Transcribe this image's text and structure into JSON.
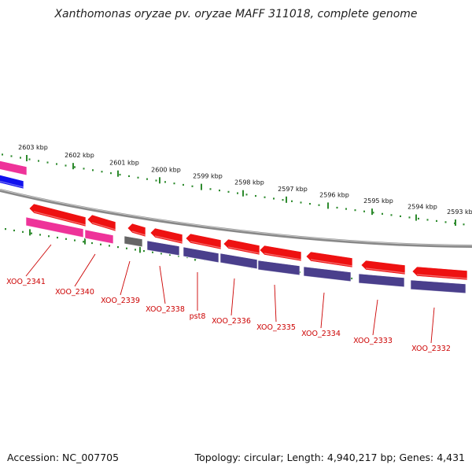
{
  "title": "Xanthomonas oryzae pv. oryzae MAFF 311018, complete genome",
  "footer": {
    "accession": "Accession: NC_007705",
    "summary": "Topology: circular; Length: 4,940,217 bp; Genes: 4,431"
  },
  "kbp_labels": [
    "2603 kbp",
    "2602 kbp",
    "2601 kbp",
    "2600 kbp",
    "2599 kbp",
    "2598 kbp",
    "2597 kbp",
    "2596 kbp",
    "2595 kbp",
    "2594 kbp",
    "2593 kbp"
  ],
  "gene_labels": [
    "XOO_2341",
    "XOO_2340",
    "XOO_2339",
    "XOO_2338",
    "pst8",
    "XOO_2336",
    "XOO_2335",
    "XOO_2334",
    "XOO_2333",
    "XOO_2332"
  ],
  "colors": {
    "cds_arrow": "#ee1111",
    "cds_pink": "#ee3399",
    "cds_purple": "#4a3f8c",
    "pseudo_gray": "#666666",
    "blue_gene": "#1111ee",
    "tick_green": "#2e8b2e",
    "label_red": "#cc0000",
    "backbone": "#888888"
  }
}
